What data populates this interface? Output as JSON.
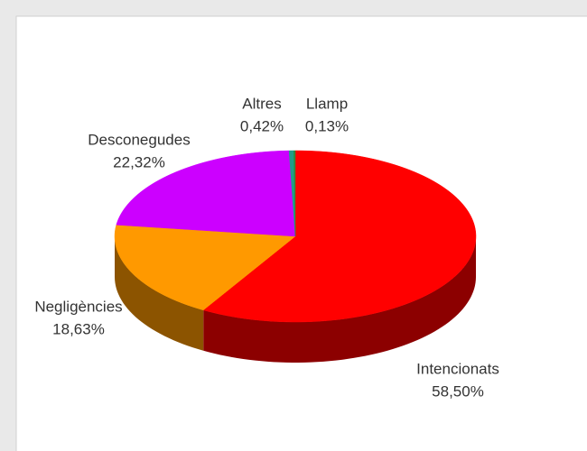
{
  "chart_data": {
    "type": "pie",
    "categories": [
      "Intencionats",
      "Negligències",
      "Desconegudes",
      "Altres",
      "Llamp"
    ],
    "values": [
      58.5,
      18.63,
      22.32,
      0.42,
      0.13
    ],
    "value_labels": [
      "58,50%",
      "18,63%",
      "22,32%",
      "0,42%",
      "0,13%"
    ],
    "colors": [
      "#ff0000",
      "#ff9900",
      "#cc00ff",
      "#1f9e89",
      "#2e8b3a"
    ]
  }
}
